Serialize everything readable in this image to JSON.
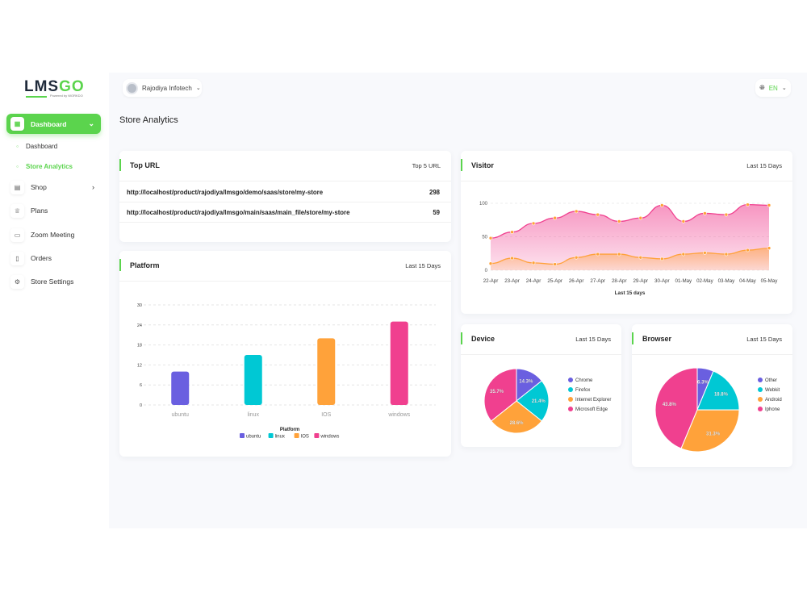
{
  "brand": {
    "logo_a": "LMS",
    "logo_b": "GO",
    "powered": "Powered by WORKDO"
  },
  "sidebar": {
    "active": {
      "label": "Dashboard",
      "icon": "grid-icon"
    },
    "sub": [
      {
        "label": "Dashboard"
      },
      {
        "label": "Store Analytics",
        "active": true
      }
    ],
    "items": [
      {
        "label": "Shop",
        "icon": "receipt-icon",
        "has_chevron": true
      },
      {
        "label": "Plans",
        "icon": "trophy-icon"
      },
      {
        "label": "Zoom Meeting",
        "icon": "video-icon"
      },
      {
        "label": "Orders",
        "icon": "clipboard-icon"
      },
      {
        "label": "Store Settings",
        "icon": "gear-icon"
      }
    ]
  },
  "header": {
    "user": "Rajodiya Infotech",
    "lang": "EN"
  },
  "page_title": "Store Analytics",
  "colors": {
    "accent": "#5bd44d",
    "purple": "#6a5fe0",
    "cyan": "#00c8d4",
    "orange": "#ffa23a",
    "pink": "#f0408f"
  },
  "top_url": {
    "title": "Top URL",
    "right": "Top 5 URL",
    "rows": [
      {
        "url": "http://localhost/product/rajodiya/lmsgo/demo/saas/store/my-store",
        "count": "298"
      },
      {
        "url": "http://localhost/product/rajodiya/lmsgo/main/saas/main_file/store/my-store",
        "count": "59"
      }
    ]
  },
  "platform": {
    "title": "Platform",
    "right": "Last 15 Days"
  },
  "visitor": {
    "title": "Visitor",
    "right": "Last 15 Days"
  },
  "device": {
    "title": "Device",
    "right": "Last 15 Days"
  },
  "browser": {
    "title": "Browser",
    "right": "Last 15 Days"
  },
  "chart_data": [
    {
      "id": "platform",
      "type": "bar",
      "categories": [
        "ubuntu",
        "linux",
        "IOS",
        "windows"
      ],
      "values": [
        10,
        15,
        20,
        25
      ],
      "ylim": [
        0,
        30
      ],
      "yticks": [
        0,
        6,
        12,
        18,
        24,
        30
      ],
      "legend_title": "Platform",
      "legend": "bottom",
      "grid": true,
      "colors": [
        "#6a5fe0",
        "#00c8d4",
        "#ffa23a",
        "#f0408f"
      ]
    },
    {
      "id": "visitor",
      "type": "area",
      "categories": [
        "22-Apr",
        "23-Apr",
        "24-Apr",
        "25-Apr",
        "26-Apr",
        "27-Apr",
        "28-Apr",
        "29-Apr",
        "30-Apr",
        "01-May",
        "02-May",
        "03-May",
        "04-May",
        "05-May"
      ],
      "series": [
        {
          "values": [
            48,
            57,
            70,
            78,
            88,
            83,
            73,
            78,
            97,
            73,
            85,
            83,
            98,
            97
          ],
          "color": "#f0408f"
        },
        {
          "values": [
            10,
            18,
            11,
            9,
            19,
            24,
            24,
            19,
            17,
            24,
            26,
            24,
            30,
            33
          ],
          "color": "#ffa23a"
        }
      ],
      "ylim": [
        0,
        100
      ],
      "yticks": [
        0,
        50,
        100
      ],
      "xlabel": "Last 15 days",
      "grid": true
    },
    {
      "id": "device",
      "type": "pie",
      "labels": [
        "Chrome",
        "Firefox",
        "Internet Explorer",
        "Microsoft Edge"
      ],
      "values": [
        14.3,
        21.4,
        28.6,
        35.7
      ],
      "data_labels": [
        "14.3%",
        "21.4%",
        "28.6%",
        "35.7%"
      ],
      "legend": "right",
      "colors": [
        "#6a5fe0",
        "#00c8d4",
        "#ffa23a",
        "#f0408f"
      ]
    },
    {
      "id": "browser",
      "type": "pie",
      "labels": [
        "Other",
        "Webkit",
        "Android",
        "Iphone"
      ],
      "values": [
        6.3,
        18.8,
        31.3,
        43.8
      ],
      "data_labels": [
        "6.3%",
        "18.8%",
        "31.3%",
        "43.8%"
      ],
      "legend": "right",
      "colors": [
        "#6a5fe0",
        "#00c8d4",
        "#ffa23a",
        "#f0408f"
      ]
    }
  ]
}
